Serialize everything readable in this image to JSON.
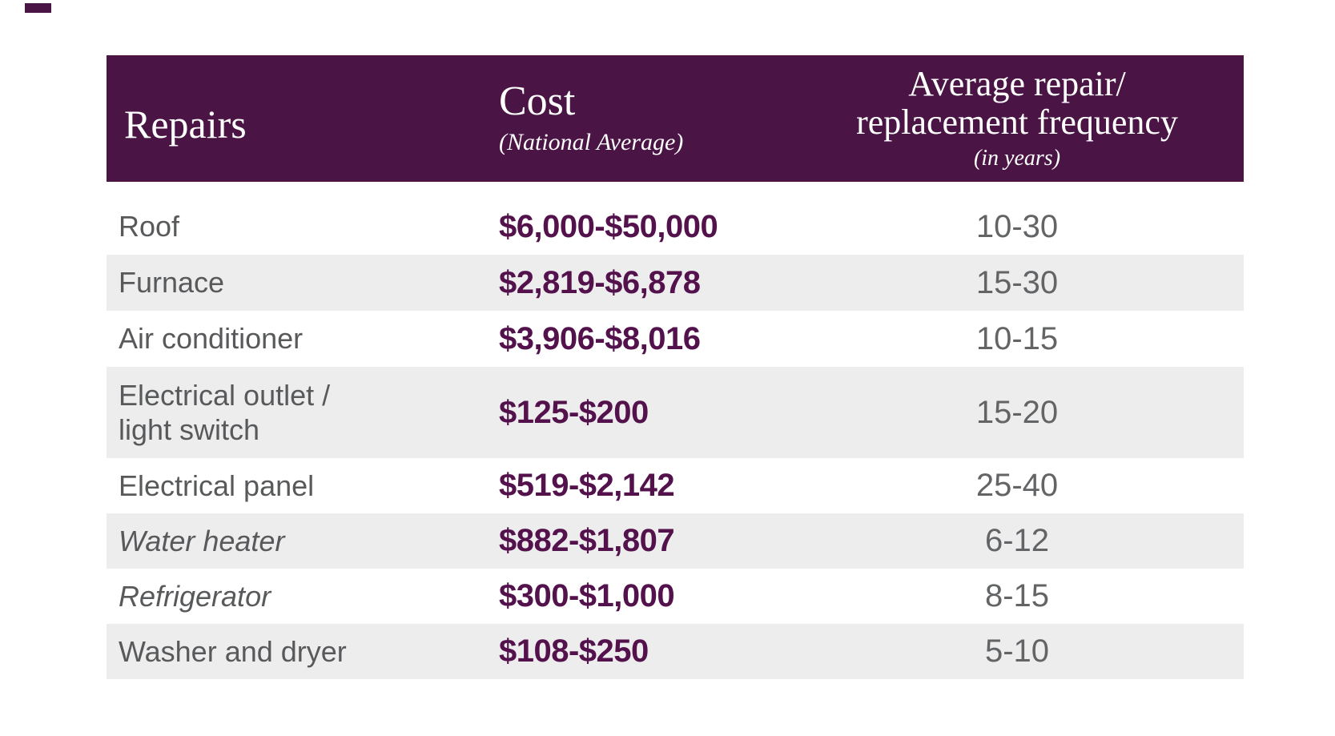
{
  "header": {
    "repairs_label": "Repairs",
    "cost_label": "Cost",
    "cost_subtitle": "(National Average)",
    "freq_line1": "Average repair/",
    "freq_line2": "replacement frequency",
    "freq_subtitle": "(in years)"
  },
  "rows": [
    {
      "repair": "Roof",
      "cost": "$6,000-$50,000",
      "frequency": "10-30"
    },
    {
      "repair": "Furnace",
      "cost": "$2,819-$6,878",
      "frequency": "15-30"
    },
    {
      "repair": "Air conditioner",
      "cost": "$3,906-$8,016",
      "frequency": "10-15"
    },
    {
      "repair": "Electrical outlet /\nlight switch",
      "cost": "$125-$200",
      "frequency": "15-20"
    },
    {
      "repair": "Electrical panel",
      "cost": "$519-$2,142",
      "frequency": "25-40"
    },
    {
      "repair": "Water heater",
      "cost": "$882-$1,807",
      "frequency": "6-12"
    },
    {
      "repair": "Refrigerator",
      "cost": "$300-$1,000",
      "frequency": "8-15"
    },
    {
      "repair": "Washer and dryer",
      "cost": "$108-$250",
      "frequency": "5-10"
    }
  ],
  "colors": {
    "header_bg": "#4a1545",
    "header_text": "#ffffff",
    "shaded_row_bg": "#ededee",
    "repair_text": "#58595b",
    "cost_text": "#54124d",
    "frequency_text": "#636466",
    "corner_mark": "#4a1545"
  },
  "chart_data": {
    "type": "table",
    "columns": [
      "Repairs",
      "Cost (National Average)",
      "Average repair/replacement frequency (in years)"
    ],
    "rows": [
      [
        "Roof",
        "$6,000-$50,000",
        "10-30"
      ],
      [
        "Furnace",
        "$2,819-$6,878",
        "15-30"
      ],
      [
        "Air conditioner",
        "$3,906-$8,016",
        "10-15"
      ],
      [
        "Electrical outlet / light switch",
        "$125-$200",
        "15-20"
      ],
      [
        "Electrical panel",
        "$519-$2,142",
        "25-40"
      ],
      [
        "Water heater",
        "$882-$1,807",
        "6-12"
      ],
      [
        "Refrigerator",
        "$300-$1,000",
        "8-15"
      ],
      [
        "Washer and dryer",
        "$108-$250",
        "5-10"
      ]
    ],
    "notes": {
      "shaded_rows": [
        "Furnace",
        "Electrical outlet / light switch",
        "Water heater",
        "Washer and dryer"
      ],
      "italic_rows": [
        "Water heater",
        "Refrigerator"
      ]
    }
  }
}
